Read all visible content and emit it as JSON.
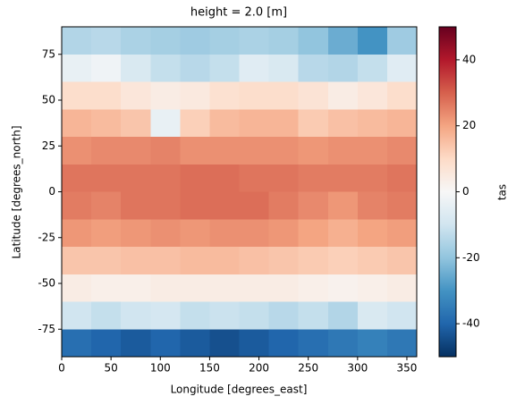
{
  "chart_data": {
    "type": "heatmap",
    "title": "height = 2.0 [m]",
    "x_label": "Longitude [degrees_east]",
    "y_label": "Latitude [degrees_north]",
    "colorbar_label": "tas",
    "x": [
      0,
      30,
      60,
      90,
      120,
      150,
      180,
      210,
      240,
      270,
      300,
      330,
      360
    ],
    "y": [
      90,
      75,
      60,
      45,
      30,
      15,
      0,
      -15,
      -30,
      -45,
      -60,
      -75,
      -90
    ],
    "z": [
      [
        -15,
        -14,
        -16,
        -17,
        -18,
        -17,
        -16,
        -17,
        -20,
        -25,
        -30,
        -18
      ],
      [
        -4,
        -2,
        -8,
        -12,
        -14,
        -12,
        -6,
        -8,
        -14,
        -15,
        -12,
        -6
      ],
      [
        9,
        9,
        6,
        4,
        5,
        8,
        9,
        9,
        7,
        4,
        6,
        9
      ],
      [
        17,
        16,
        14,
        -4,
        12,
        16,
        17,
        17,
        13,
        15,
        16,
        17
      ],
      [
        23,
        24,
        24,
        25,
        23,
        23,
        23,
        23,
        22,
        23,
        23,
        24
      ],
      [
        27,
        27,
        27,
        27,
        28,
        28,
        27,
        27,
        26,
        26,
        26,
        27
      ],
      [
        26,
        25,
        27,
        27,
        28,
        28,
        28,
        26,
        24,
        22,
        25,
        26
      ],
      [
        22,
        21,
        22,
        23,
        22,
        23,
        23,
        22,
        20,
        18,
        20,
        21
      ],
      [
        14,
        14,
        15,
        15,
        16,
        16,
        15,
        14,
        13,
        12,
        13,
        14
      ],
      [
        4,
        3,
        3,
        4,
        4,
        4,
        4,
        4,
        3,
        2,
        3,
        4
      ],
      [
        -10,
        -12,
        -10,
        -9,
        -12,
        -11,
        -12,
        -14,
        -12,
        -15,
        -8,
        -10
      ],
      [
        -38,
        -40,
        -42,
        -40,
        -42,
        -44,
        -42,
        -40,
        -38,
        -36,
        -34,
        -36
      ]
    ],
    "xlim": [
      0,
      360
    ],
    "ylim": [
      -90,
      90
    ],
    "clim": [
      -50,
      50
    ],
    "xticks": [
      0,
      50,
      100,
      150,
      200,
      250,
      300,
      350
    ],
    "yticks": [
      -75,
      -50,
      -25,
      0,
      25,
      50,
      75
    ],
    "cticks": [
      -40,
      -20,
      0,
      20,
      40
    ],
    "colorscale": [
      "#053061",
      "#2166ac",
      "#4393c3",
      "#92c5de",
      "#d1e5f0",
      "#f7f7f7",
      "#fddbc7",
      "#f4a582",
      "#d6604d",
      "#b2182b",
      "#67001f"
    ]
  }
}
